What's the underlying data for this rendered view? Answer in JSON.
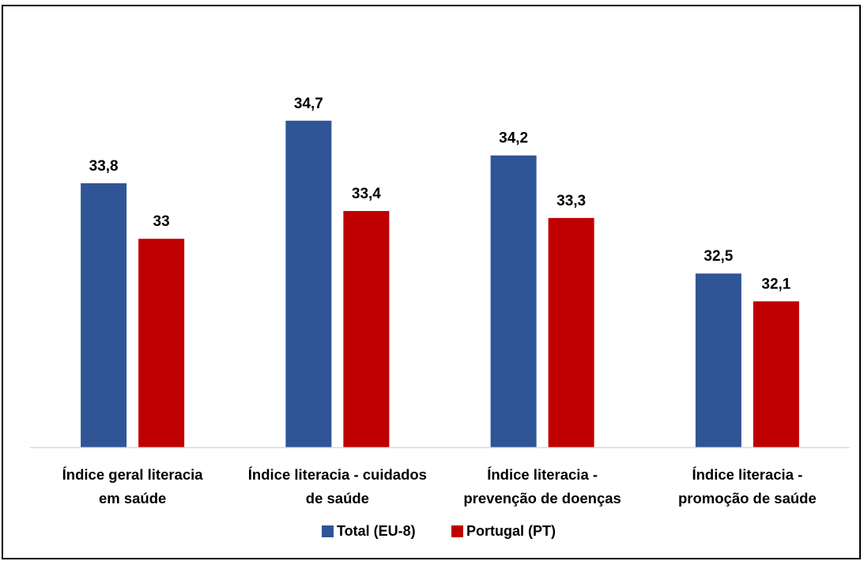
{
  "chart_data": {
    "type": "bar",
    "title": "",
    "xlabel": "",
    "ylabel": "",
    "categories": [
      [
        "Índice geral literacia",
        "em saúde"
      ],
      [
        "Índice literacia - cuidados",
        "de saúde"
      ],
      [
        "Índice literacia -",
        "prevenção de doenças"
      ],
      [
        "Índice literacia -",
        "promoção de saúde"
      ]
    ],
    "series": [
      {
        "name": "Total (EU-8)",
        "color": "#2F5597",
        "values": [
          33.8,
          34.7,
          34.2,
          32.5
        ],
        "labels": [
          "33,8",
          "34,7",
          "34,2",
          "32,5"
        ]
      },
      {
        "name": "Portugal (PT)",
        "color": "#C00000",
        "values": [
          33,
          33.4,
          33.3,
          32.1
        ],
        "labels": [
          "33",
          "33,4",
          "33,3",
          "32,1"
        ]
      }
    ],
    "ylim": [
      30,
      35.3
    ],
    "grid": false,
    "legend_position": "bottom"
  }
}
